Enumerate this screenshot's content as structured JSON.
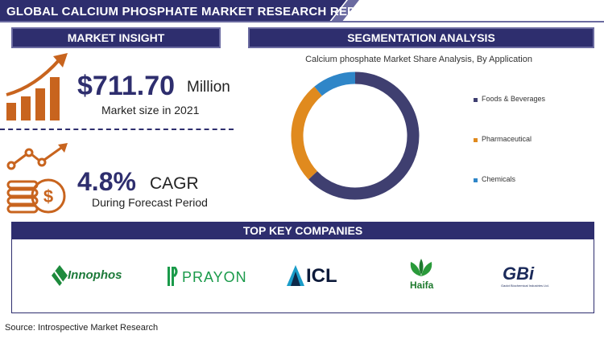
{
  "header": {
    "title": "GLOBAL CALCIUM PHOSPHATE MARKET RESEARCH REPORT"
  },
  "market_insight": {
    "heading": "MARKET INSIGHT",
    "market_size_value": "$711.70",
    "market_size_unit": "Million",
    "market_size_caption": "Market size in 2021",
    "cagr_value": "4.8%",
    "cagr_label": "CAGR",
    "cagr_caption": "During Forecast Period"
  },
  "segmentation": {
    "heading": "SEGMENTATION ANALYSIS"
  },
  "chart_data": {
    "type": "pie",
    "title": "Calcium phosphate Market Share Analysis, By Application",
    "categories": [
      "Foods & Beverages",
      "Pharmaceutical",
      "Chemicals"
    ],
    "values": [
      63,
      26,
      11
    ],
    "colors": [
      "#3f3f70",
      "#e08a1e",
      "#2f86c8"
    ],
    "legend_position": "right",
    "donut": true
  },
  "companies": {
    "heading": "TOP KEY COMPANIES",
    "logos": [
      {
        "name": "Innophos"
      },
      {
        "name": "PRAYON"
      },
      {
        "name": "ICL"
      },
      {
        "name": "Haifa"
      },
      {
        "name": "GBi",
        "subtext": "Gadot Biochemical Industries Ltd."
      }
    ]
  },
  "footer": {
    "source": "Source: Introspective Market Research"
  },
  "colors": {
    "navy": "#2e2e6e",
    "orange": "#c8641e",
    "accent_slash": "#6a6aa0"
  }
}
